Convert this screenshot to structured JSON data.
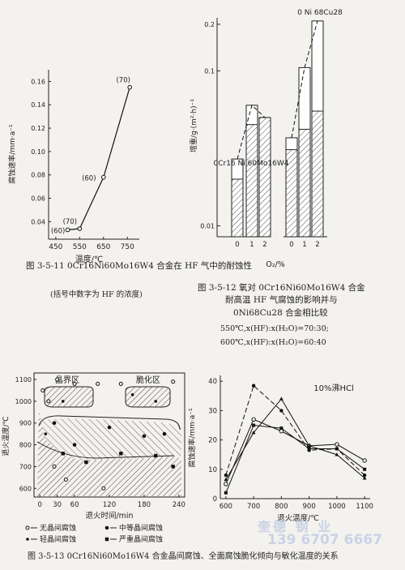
{
  "chart_data": [
    {
      "type": "line",
      "figure_label": "图 3-5-11",
      "caption": "0Cr16Ni60Mo16W4 合金在 HF 气中的耐蚀性",
      "caption_note": "(括号中数字为 HF 的浓度)",
      "xlabel": "温度/℃",
      "ylabel": "腐蚀速率/mm·a⁻¹",
      "x_ticks": [
        "450",
        "550",
        "650",
        "750"
      ],
      "y_ticks": [
        "0.04",
        "0.06",
        "0.08",
        "0.10",
        "0.12",
        "0.14",
        "0.16"
      ],
      "xlim": [
        420,
        800
      ],
      "ylim": [
        0.025,
        0.17
      ],
      "x": [
        500,
        550,
        650,
        760
      ],
      "y": [
        0.033,
        0.034,
        0.078,
        0.155
      ],
      "point_labels": [
        "(60)",
        "(70)",
        "(60)",
        "(70)"
      ]
    },
    {
      "type": "bar",
      "figure_label": "图 3-5-12",
      "caption_lines": [
        "氧对 0Cr16Ni60Mo16W4 合金",
        "耐高温 HF 气腐蚀的影响并与",
        "0Ni68Cu28 合金相比较"
      ],
      "condition_lines": [
        "550℃,x(HF):x(H₂O)=70:30;",
        "600℃,x(HF):x(H₂O)=60:40"
      ],
      "xlabel": "O₂/%",
      "ylabel": "增重/g·(m²·h)⁻¹",
      "y_scale": "log",
      "y_ticks": [
        "0.01",
        "0.1",
        "0.2"
      ],
      "ylim": [
        0.0085,
        0.22
      ],
      "groups": [
        {
          "name": "0Cr16 Ni 60Mo16W4",
          "categories": [
            "0",
            "1",
            "2"
          ],
          "total": [
            0.027,
            0.06,
            0.05
          ],
          "hatched": [
            0.02,
            0.045,
            0.05
          ]
        },
        {
          "name": "0 Ni 68Cu28",
          "categories": [
            "0",
            "1",
            "2"
          ],
          "total": [
            0.037,
            0.105,
            0.21
          ],
          "hatched": [
            0.031,
            0.042,
            0.055
          ]
        }
      ]
    },
    {
      "type": "scatter",
      "figure_label": "图 3-5-13",
      "caption": "0Cr16Ni60Mo16W4 合金晶间腐蚀、全面腐蚀脆化倾向与敏化温度的关系",
      "xlabel": "退火时间/min",
      "ylabel": "退火温度/℃",
      "x_ticks": [
        "0",
        "30",
        "60",
        "120",
        "180",
        "240"
      ],
      "y_ticks": [
        "600",
        "700",
        "800",
        "900",
        "1000",
        "1100"
      ],
      "xlim": [
        -10,
        250
      ],
      "ylim": [
        560,
        1130
      ],
      "region_labels": [
        "晶界区",
        "脆化区"
      ],
      "legend": [
        "无晶间腐蚀",
        "轻晶间腐蚀",
        "中等晶间腐蚀",
        "严重晶间腐蚀"
      ],
      "points": [
        {
          "x": 5,
          "y": 1050,
          "s": 0
        },
        {
          "x": 15,
          "y": 1000,
          "s": 0
        },
        {
          "x": 30,
          "y": 1100,
          "s": 0
        },
        {
          "x": 60,
          "y": 1080,
          "s": 0
        },
        {
          "x": 100,
          "y": 1080,
          "s": 0
        },
        {
          "x": 140,
          "y": 1080,
          "s": 0
        },
        {
          "x": 230,
          "y": 1090,
          "s": 0
        },
        {
          "x": 25,
          "y": 700,
          "s": 0
        },
        {
          "x": 45,
          "y": 640,
          "s": 0
        },
        {
          "x": 110,
          "y": 600,
          "s": 0
        },
        {
          "x": 10,
          "y": 850,
          "s": 1
        },
        {
          "x": 40,
          "y": 1000,
          "s": 1
        },
        {
          "x": 160,
          "y": 1030,
          "s": 1
        },
        {
          "x": 200,
          "y": 1000,
          "s": 1
        },
        {
          "x": 25,
          "y": 900,
          "s": 2
        },
        {
          "x": 60,
          "y": 800,
          "s": 2
        },
        {
          "x": 120,
          "y": 880,
          "s": 2
        },
        {
          "x": 180,
          "y": 840,
          "s": 2
        },
        {
          "x": 215,
          "y": 850,
          "s": 2
        },
        {
          "x": 40,
          "y": 760,
          "s": 3
        },
        {
          "x": 80,
          "y": 720,
          "s": 3
        },
        {
          "x": 140,
          "y": 760,
          "s": 3
        },
        {
          "x": 200,
          "y": 750,
          "s": 3
        },
        {
          "x": 230,
          "y": 700,
          "s": 3
        }
      ]
    },
    {
      "type": "line",
      "title": "10%沸HCl",
      "xlabel": "退火温度/℃",
      "ylabel": "腐蚀速率/mm·a⁻¹",
      "x_ticks": [
        "600",
        "700",
        "800",
        "900",
        "1000",
        "1100"
      ],
      "y_ticks": [
        "0",
        "10",
        "20",
        "30",
        "40"
      ],
      "xlim": [
        580,
        1120
      ],
      "ylim": [
        0,
        42
      ],
      "x": [
        600,
        700,
        800,
        900,
        1000,
        1100
      ],
      "series": [
        {
          "values": [
            8,
            38.5,
            30,
            16.5,
            17,
            8
          ],
          "dash": "6,3"
        },
        {
          "values": [
            5,
            27,
            23,
            18,
            18.5,
            13
          ]
        },
        {
          "values": [
            2,
            25,
            24,
            17,
            17,
            10
          ]
        },
        {
          "values": [
            6.5,
            22.5,
            34,
            18,
            15,
            7
          ]
        }
      ]
    }
  ],
  "watermark": {
    "company": "奎德 钢 业",
    "phone": "139 6707 6667"
  }
}
